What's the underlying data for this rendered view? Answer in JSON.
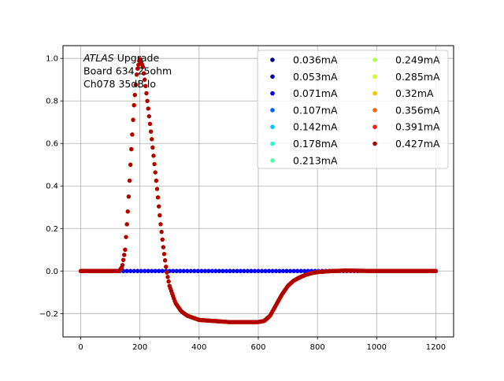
{
  "chart_data": {
    "type": "scatter",
    "title": "",
    "xlabel": "",
    "ylabel": "",
    "xlim": [
      -60,
      1260
    ],
    "ylim": [
      -0.31,
      1.06
    ],
    "xticks": [
      0,
      200,
      400,
      600,
      800,
      1000,
      1200
    ],
    "yticks": [
      -0.2,
      0.0,
      0.2,
      0.4,
      0.6,
      0.8,
      1.0
    ],
    "xtick_labels": [
      "0",
      "200",
      "400",
      "600",
      "800",
      "1000",
      "1200"
    ],
    "ytick_labels": [
      "−0.2",
      "0.0",
      "0.2",
      "0.4",
      "0.6",
      "0.8",
      "1.0"
    ],
    "grid": true,
    "legend_position": "top-right",
    "legend_columns": 2,
    "annotation": {
      "lines": [
        "ATLAS Upgrade",
        " Board 634 25ohm",
        " Ch078 35dB lo"
      ],
      "italic_word": "ATLAS"
    },
    "pulse_shape": {
      "x": [
        0,
        130,
        140,
        150,
        160,
        170,
        180,
        190,
        200,
        210,
        220,
        230,
        240,
        250,
        260,
        270,
        280,
        290,
        300,
        320,
        340,
        360,
        380,
        400,
        450,
        500,
        550,
        600,
        620,
        640,
        660,
        680,
        700,
        720,
        740,
        760,
        780,
        800,
        850,
        900,
        1000,
        1100,
        1200
      ],
      "y": [
        0.0,
        0.0,
        0.02,
        0.1,
        0.3,
        0.55,
        0.78,
        0.94,
        1.0,
        0.96,
        0.86,
        0.74,
        0.62,
        0.49,
        0.36,
        0.22,
        0.1,
        0.0,
        -0.07,
        -0.15,
        -0.19,
        -0.21,
        -0.22,
        -0.23,
        -0.235,
        -0.24,
        -0.24,
        -0.24,
        -0.235,
        -0.21,
        -0.16,
        -0.11,
        -0.07,
        -0.045,
        -0.03,
        -0.018,
        -0.01,
        -0.005,
        0.0,
        0.002,
        0.0,
        0.0,
        0.0
      ]
    },
    "series": [
      {
        "name": "0.036mA",
        "color": "#00007f",
        "flat": true
      },
      {
        "name": "0.053mA",
        "color": "#0000b6",
        "flat": true
      },
      {
        "name": "0.071mA",
        "color": "#0000ff",
        "flat": true
      },
      {
        "name": "0.107mA",
        "color": "#0063ff",
        "flat": false
      },
      {
        "name": "0.142mA",
        "color": "#00c0ff",
        "flat": false
      },
      {
        "name": "0.178mA",
        "color": "#29ffce",
        "flat": false
      },
      {
        "name": "0.213mA",
        "color": "#53ffa3",
        "flat": false
      },
      {
        "name": "0.249mA",
        "color": "#a3ff53",
        "flat": false
      },
      {
        "name": "0.285mA",
        "color": "#ceff29",
        "flat": false
      },
      {
        "name": "0.32mA",
        "color": "#ffc400",
        "flat": false
      },
      {
        "name": "0.356mA",
        "color": "#ff6800",
        "flat": false
      },
      {
        "name": "0.391mA",
        "color": "#f91c00",
        "flat": false
      },
      {
        "name": "0.427mA",
        "color": "#b20000",
        "flat": false
      }
    ]
  }
}
